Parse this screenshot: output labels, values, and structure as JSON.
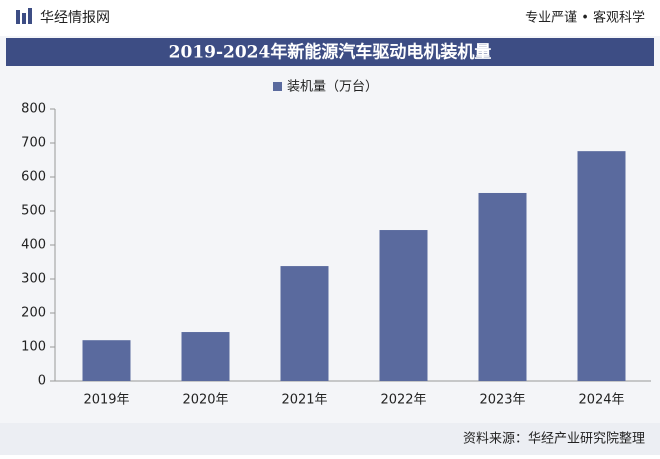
{
  "header": {
    "brand": "华经情报网",
    "slogan": "专业严谨 • 客观科学"
  },
  "chart_data": {
    "type": "bar",
    "title": "2019-2024年新能源汽车驱动电机装机量",
    "categories": [
      "2019年",
      "2020年",
      "2021年",
      "2022年",
      "2023年",
      "2024年"
    ],
    "series": [
      {
        "name": "装机量（万台）",
        "color": "#5a6a9e",
        "values": [
          120,
          144,
          338,
          444,
          553,
          676
        ]
      }
    ],
    "ylim": [
      0,
      800
    ],
    "yticks": [
      0,
      100,
      200,
      300,
      400,
      500,
      600,
      700,
      800
    ],
    "grid": false
  },
  "footer": {
    "source": "资料来源：华经产业研究院整理"
  }
}
